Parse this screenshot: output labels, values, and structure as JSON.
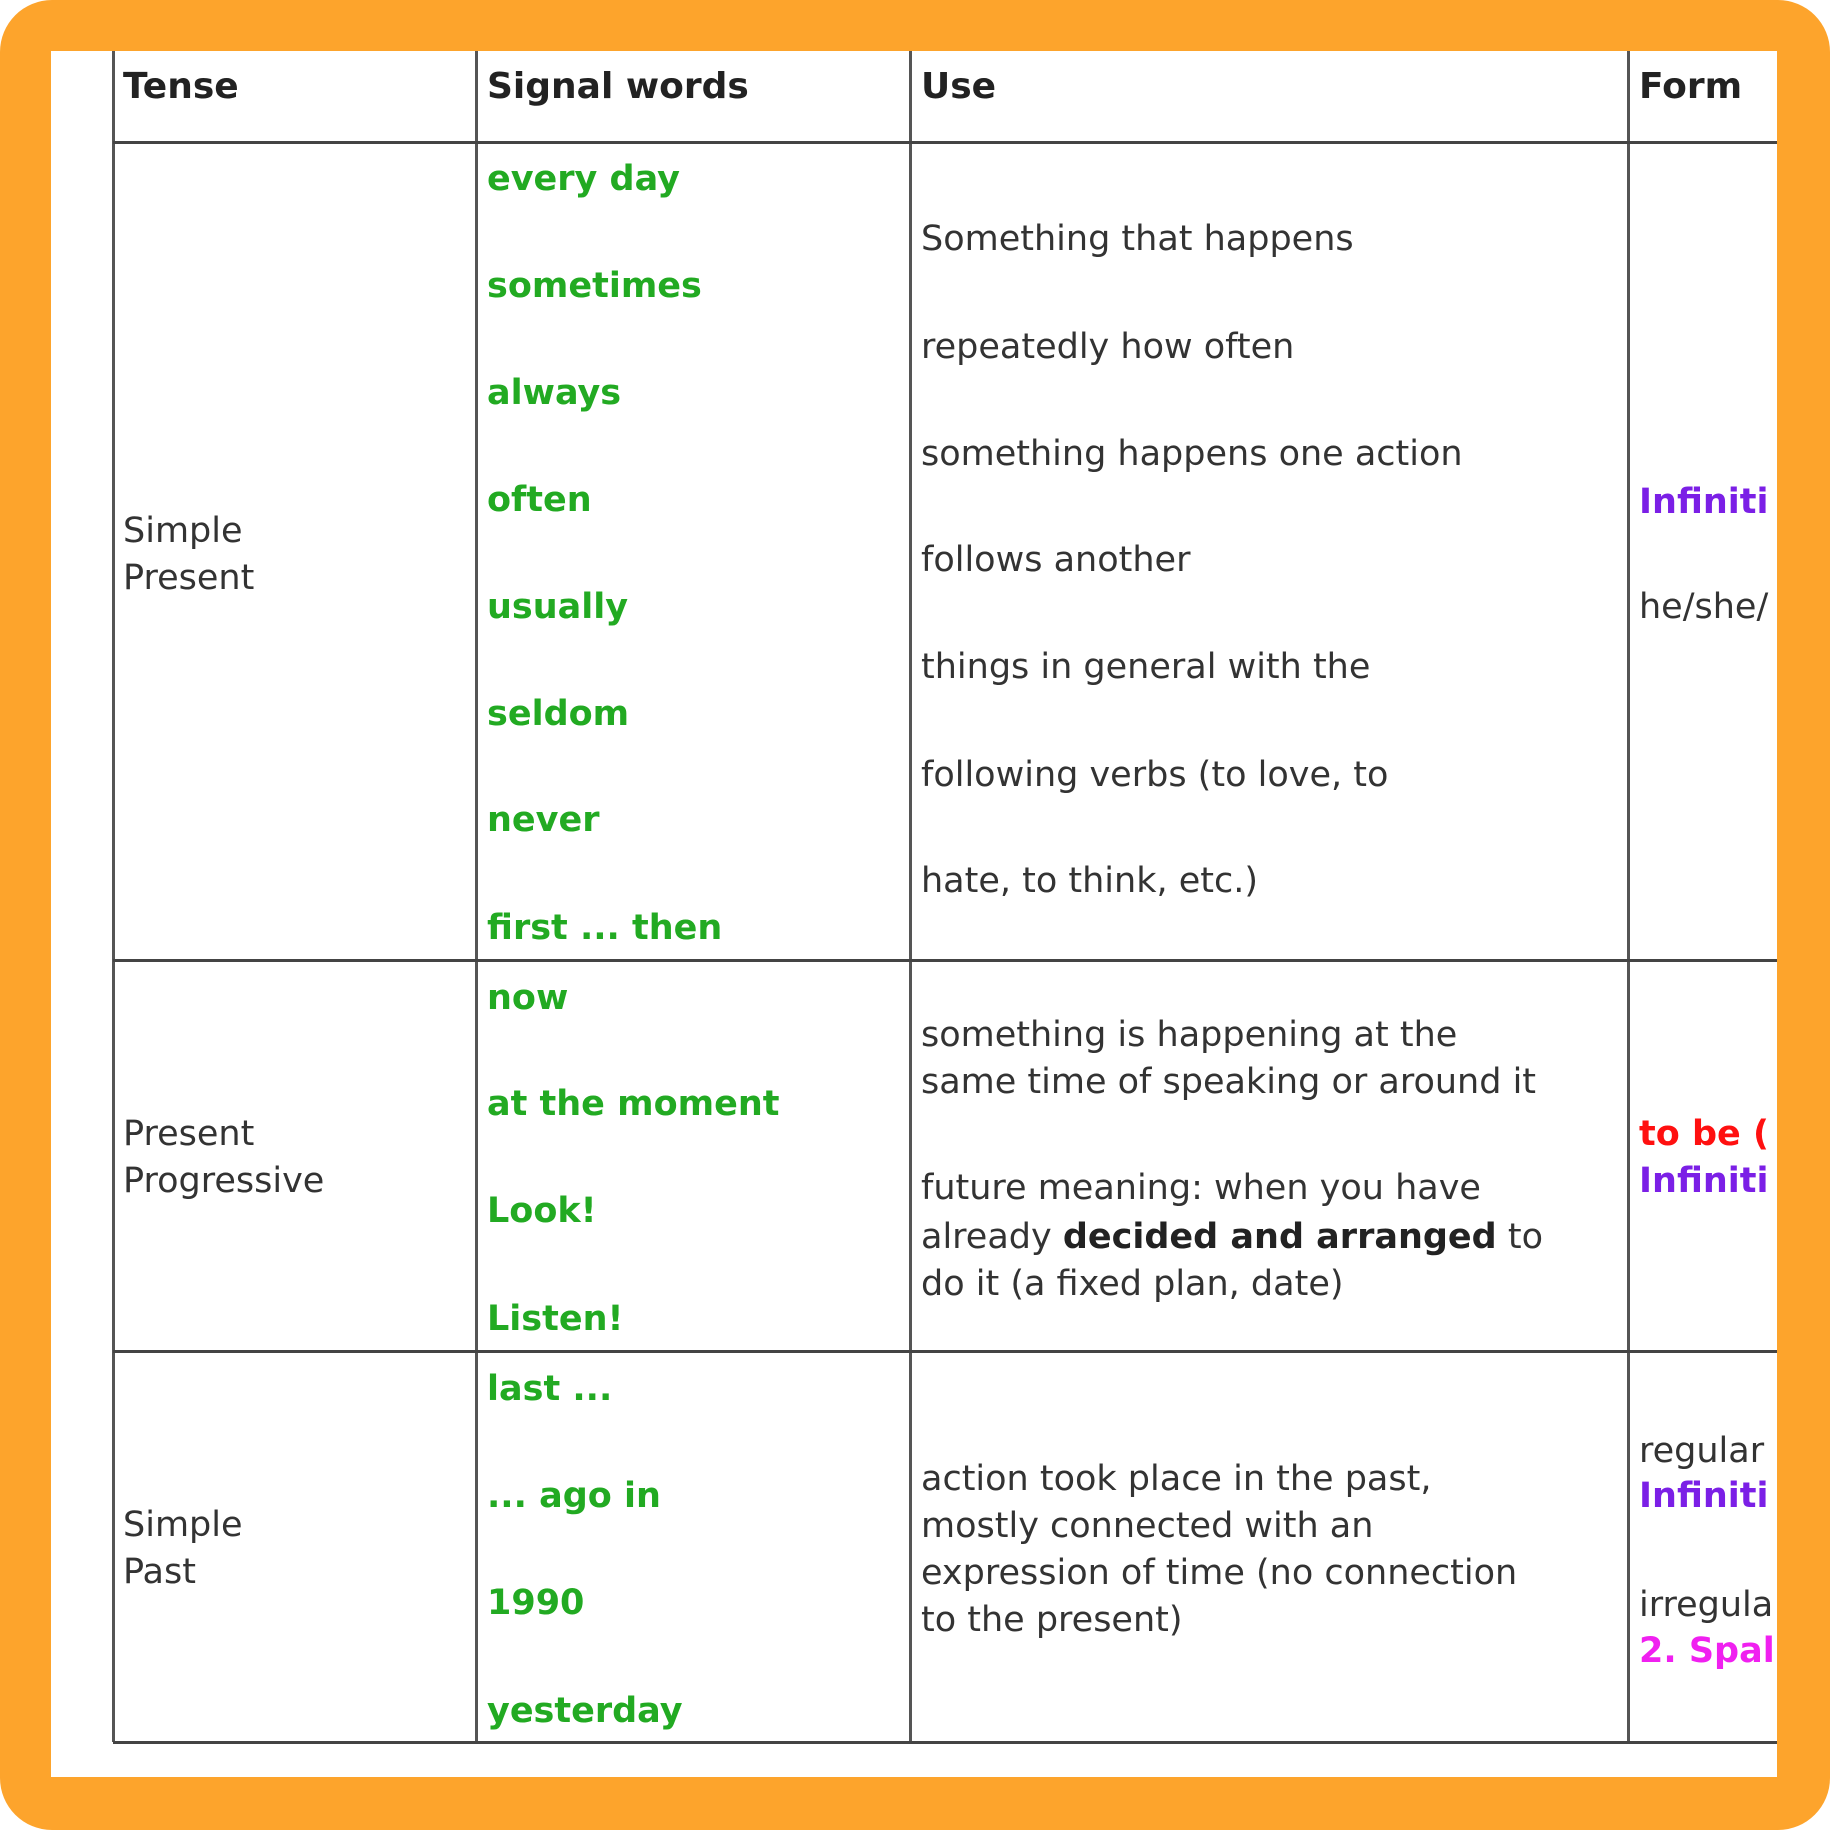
{
  "colors": {
    "border": "#fda42c",
    "signal": "#22aa22",
    "infinitive": "#7b1fe6",
    "to_be": "#ff1010",
    "past_participle": "#f020f0"
  },
  "headers": {
    "tense": "Tense",
    "signal": "Signal words",
    "use": "Use",
    "form": "Form"
  },
  "rows": [
    {
      "tense": [
        "Simple",
        "Present"
      ],
      "signal": [
        "every day",
        "sometimes",
        "always",
        "often",
        "usually",
        "seldom",
        "never",
        "first ... then"
      ],
      "use": [
        "Something that happens",
        "repeatedly how often",
        "something happens one action",
        "follows another",
        "things in general with the",
        "following verbs (to love, to",
        "hate, to think, etc.)"
      ],
      "form": [
        "Infiniti",
        "he/she/"
      ]
    },
    {
      "tense": [
        "Present",
        "Progressive"
      ],
      "signal": [
        "now",
        "at the moment",
        "Look!",
        "Listen!"
      ],
      "use": [
        "something is happening at the",
        "same time of speaking or around it",
        "future meaning: when you have",
        "already ",
        "decided and arranged",
        " to",
        "do it (a fixed plan, date)"
      ],
      "form": [
        "to be (",
        "Infiniti"
      ]
    },
    {
      "tense": [
        "Simple",
        "Past"
      ],
      "signal": [
        "last ...",
        "... ago in",
        "1990",
        "yesterday"
      ],
      "use": [
        "action took place in the past,",
        "mostly connected with an",
        "expression of time (no connection",
        "to the present)"
      ],
      "form": [
        "regular",
        "Infiniti",
        "irregula",
        "2. Spal"
      ]
    }
  ]
}
